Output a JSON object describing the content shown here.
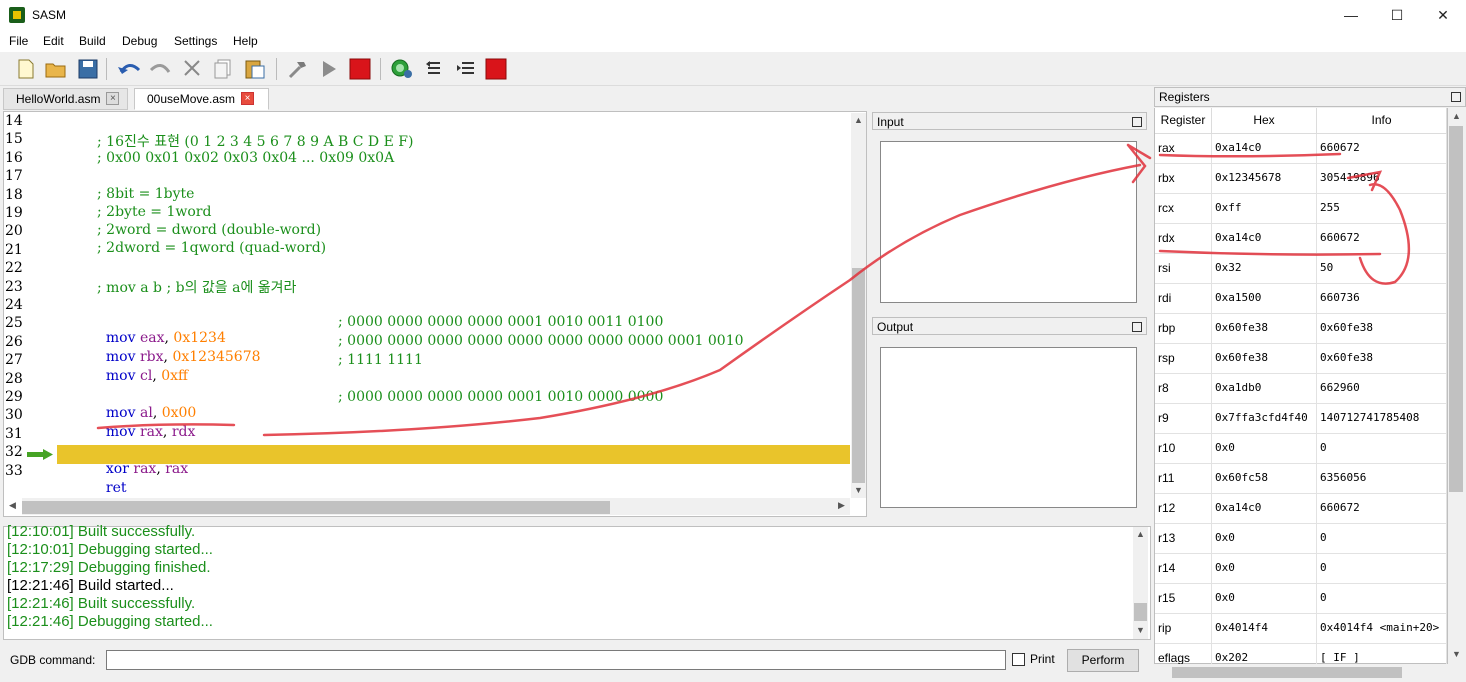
{
  "window": {
    "title": "SASM",
    "controls": [
      "—",
      "☐",
      "✕"
    ]
  },
  "menu": [
    "File",
    "Edit",
    "Build",
    "Debug",
    "Settings",
    "Help"
  ],
  "toolbar": [
    "new-file",
    "open-file",
    "save",
    "undo",
    "redo",
    "cut",
    "copy",
    "paste",
    "build",
    "run",
    "stop",
    "debug",
    "step-over",
    "step-into",
    "stop-debug"
  ],
  "tabs": [
    {
      "label": "HelloWorld.asm",
      "close": "×"
    },
    {
      "label": "00useMove.asm",
      "close": "×"
    }
  ],
  "editor": {
    "line_numbers": [
      "14",
      "15",
      "16",
      "17",
      "18",
      "19",
      "20",
      "21",
      "22",
      "23",
      "24",
      "25",
      "26",
      "27",
      "28",
      "29",
      "30",
      "31",
      "32",
      "33"
    ],
    "current_line": "32",
    "lines": {
      "l15": "; 16진수 표현 (0 1 2 3 4 5 6 7 8 9 A B C D E F)",
      "l16": "; 0x00 0x01 0x02 0x03 0x04 ... 0x09 0x0A",
      "l18": "; 8bit = 1byte",
      "l19": "; 2byte = 1word",
      "l20": "; 2word = dword (double-word)",
      "l21": "; 2dword = 1qword (quad-word)",
      "l23": "; mov a b ; b의 값을 a에 옮겨라",
      "l25": {
        "op": "mov",
        "reg": "eax",
        "sep": ", ",
        "val": "0x1234",
        "cmt": "; 0000 0000 0000 0000 0001 0010 0011 0100"
      },
      "l26": {
        "op": "mov",
        "reg": "rbx",
        "sep": ", ",
        "val": "0x12345678",
        "cmt": "; 0000 0000 0000 0000 0000 0000 0000 0000 0001 0010"
      },
      "l27": {
        "op": "mov",
        "reg": "cl",
        "sep": ", ",
        "val": "0xff",
        "cmt": "; 1111 1111"
      },
      "l29": {
        "op": "mov",
        "reg": "al",
        "sep": ", ",
        "val": "0x00",
        "cmt": "; 0000 0000 0000 0000 0001 0010 0000 0000"
      },
      "l30": {
        "op": "mov",
        "reg": "rax",
        "sep": ", ",
        "val": "rdx"
      },
      "l32": {
        "op": "xor",
        "reg": "rax",
        "sep": ", ",
        "val": "rax"
      },
      "l33": {
        "op": "ret"
      }
    }
  },
  "input_panel": {
    "title": "Input"
  },
  "output_panel": {
    "title": "Output"
  },
  "log": [
    {
      "text": "[12:10:01] Built successfully.",
      "color": "#1b8f1b"
    },
    {
      "text": "[12:10:01] Debugging started...",
      "color": "#1b8f1b"
    },
    {
      "text": "[12:17:29] Debugging finished.",
      "color": "#1b8f1b"
    },
    {
      "text": "[12:21:46] Build started...",
      "color": "#000000"
    },
    {
      "text": "[12:21:46] Built successfully.",
      "color": "#1b8f1b"
    },
    {
      "text": "[12:21:46] Debugging started...",
      "color": "#1b8f1b"
    }
  ],
  "gdb": {
    "label": "GDB command:",
    "value": "",
    "print_label": "Print",
    "perform_label": "Perform"
  },
  "registers": {
    "title": "Registers",
    "headers": [
      "Register",
      "Hex",
      "Info"
    ],
    "rows": [
      [
        "rax",
        "0xa14c0",
        "660672"
      ],
      [
        "rbx",
        "0x12345678",
        "305419896"
      ],
      [
        "rcx",
        "0xff",
        "255"
      ],
      [
        "rdx",
        "0xa14c0",
        "660672"
      ],
      [
        "rsi",
        "0x32",
        "50"
      ],
      [
        "rdi",
        "0xa1500",
        "660736"
      ],
      [
        "rbp",
        "0x60fe38",
        "0x60fe38"
      ],
      [
        "rsp",
        "0x60fe38",
        "0x60fe38"
      ],
      [
        "r8",
        "0xa1db0",
        "662960"
      ],
      [
        "r9",
        "0x7ffa3cfd4f40",
        "140712741785408"
      ],
      [
        "r10",
        "0x0",
        "0"
      ],
      [
        "r11",
        "0x60fc58",
        "6356056"
      ],
      [
        "r12",
        "0xa14c0",
        "660672"
      ],
      [
        "r13",
        "0x0",
        "0"
      ],
      [
        "r14",
        "0x0",
        "0"
      ],
      [
        "r15",
        "0x0",
        "0"
      ],
      [
        "rip",
        "0x4014f4",
        "0x4014f4 <main+20>"
      ],
      [
        "eflags",
        "0x202",
        "[ IF ]"
      ]
    ]
  },
  "colors": {
    "current_line": "#e9c42b",
    "comment": "#1b8f1b",
    "keyword": "#0000c8",
    "register": "#8b1a8b",
    "number": "#ff7f00",
    "annotation": "#e0303a"
  }
}
